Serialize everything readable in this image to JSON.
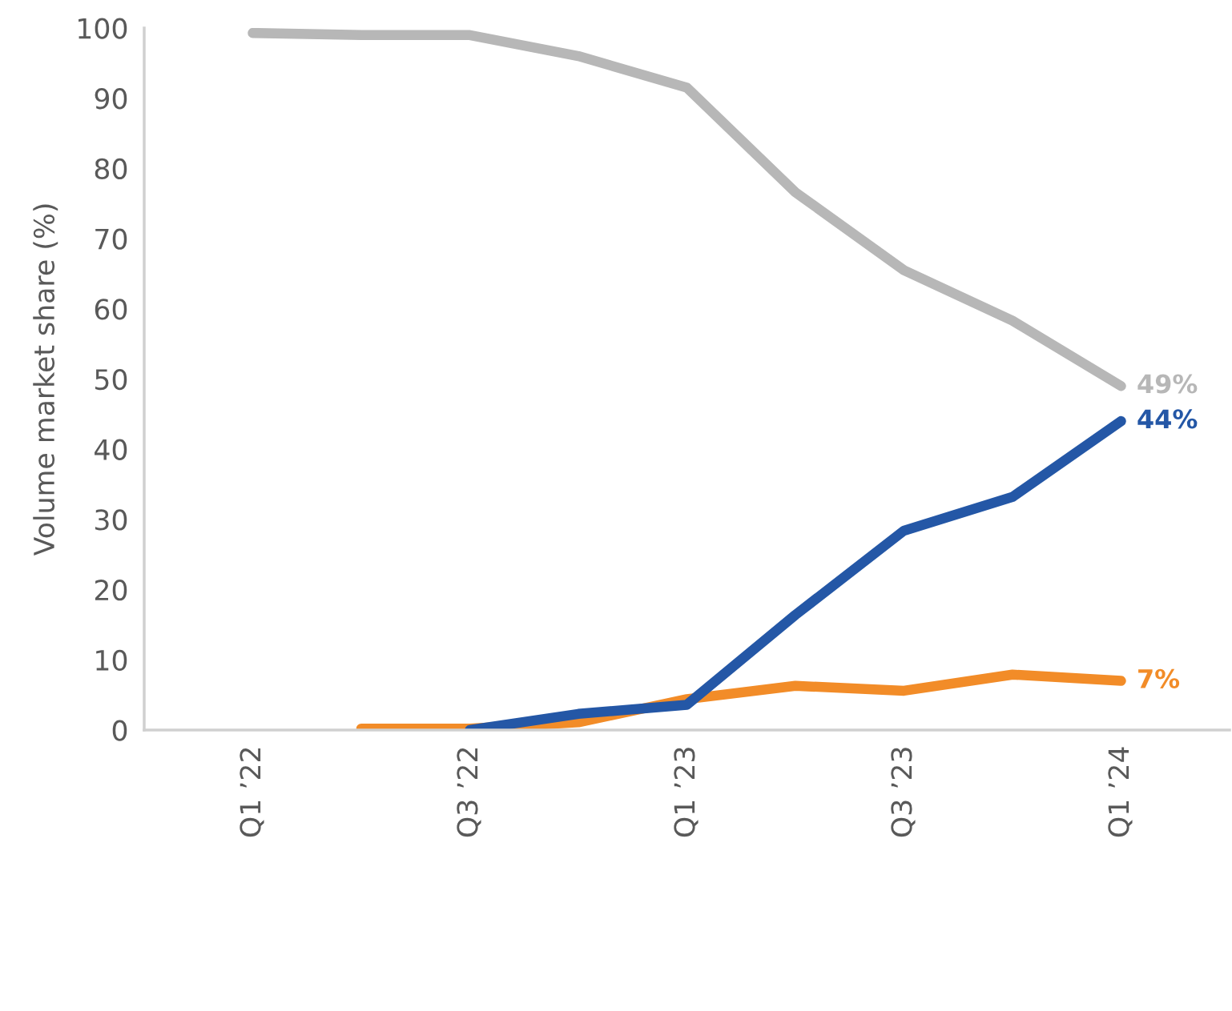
{
  "chart_data": {
    "type": "line",
    "ylabel": "Volume market share (%)",
    "categories": [
      "Q1 ’22",
      null,
      "Q3 ’22",
      null,
      "Q1 ’23",
      null,
      "Q3 ’23",
      null,
      "Q1 ’24"
    ],
    "series": [
      {
        "color": "#b7b7b7",
        "values": [
          99.3,
          99,
          99,
          96,
          91.5,
          76.6,
          65.5,
          58.3,
          49
        ],
        "value_labels": [
          null,
          null,
          null,
          null,
          null,
          null,
          null,
          null,
          "49%"
        ]
      },
      {
        "color": "#f28c28",
        "values": [
          null,
          0.2,
          0.2,
          1.1,
          4.4,
          6.3,
          5.6,
          7.9,
          7
        ],
        "value_labels": [
          null,
          null,
          null,
          null,
          null,
          null,
          null,
          null,
          "7%"
        ]
      },
      {
        "color": "#2457a6",
        "values": [
          null,
          null,
          0,
          2.3,
          3.6,
          16.4,
          28.4,
          33.2,
          44
        ],
        "value_labels": [
          null,
          null,
          null,
          null,
          null,
          null,
          null,
          null,
          "44%"
        ]
      }
    ],
    "ylim": [
      0,
      100
    ],
    "yticks": [
      0,
      10,
      20,
      30,
      40,
      50,
      60,
      70,
      80,
      90,
      100
    ],
    "grid": false,
    "line_style": "solid"
  }
}
